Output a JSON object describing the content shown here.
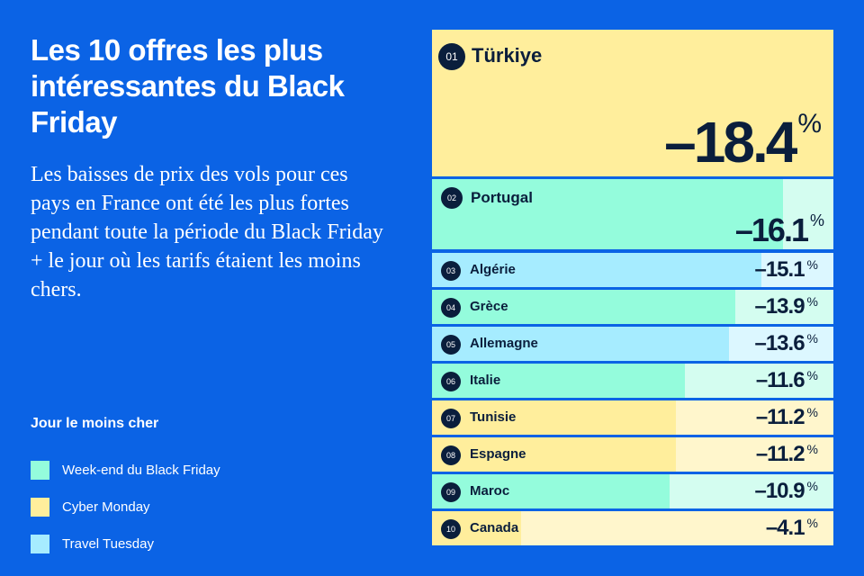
{
  "title": "Les 10 offres les plus intéressantes du Black Friday",
  "subtitle": "Les baisses de prix des vols pour ces pays en France ont été les plus fortes pendant toute la période du Black Friday + le jour où les tarifs étaient les moins chers.",
  "legend": {
    "title": "Jour le moins cher",
    "items": [
      {
        "label": "Week-end du Black Friday",
        "color": "#94fcdc",
        "light": "#d4fdf0"
      },
      {
        "label": "Cyber Monday",
        "color": "#ffee9c",
        "light": "#fff6cc"
      },
      {
        "label": "Travel Tuesday",
        "color": "#a6ecff",
        "light": "#dcf7ff"
      }
    ]
  },
  "chart_data": {
    "type": "bar",
    "orientation": "horizontal",
    "unit": "%",
    "max": 18.4,
    "rows": [
      {
        "rank": "01",
        "country": "Türkiye",
        "value": -18.4,
        "label": "–18.4",
        "category": 1
      },
      {
        "rank": "02",
        "country": "Portugal",
        "value": -16.1,
        "label": "–16.1",
        "category": 0
      },
      {
        "rank": "03",
        "country": "Algérie",
        "value": -15.1,
        "label": "–15.1",
        "category": 2
      },
      {
        "rank": "04",
        "country": "Grèce",
        "value": -13.9,
        "label": "–13.9",
        "category": 0
      },
      {
        "rank": "05",
        "country": "Allemagne",
        "value": -13.6,
        "label": "–13.6",
        "category": 2
      },
      {
        "rank": "06",
        "country": "Italie",
        "value": -11.6,
        "label": "–11.6",
        "category": 0
      },
      {
        "rank": "07",
        "country": "Tunisie",
        "value": -11.2,
        "label": "–11.2",
        "category": 1
      },
      {
        "rank": "08",
        "country": "Espagne",
        "value": -11.2,
        "label": "–11.2",
        "category": 1
      },
      {
        "rank": "09",
        "country": "Maroc",
        "value": -10.9,
        "label": "–10.9",
        "category": 0
      },
      {
        "rank": "10",
        "country": "Canada",
        "value": -4.1,
        "label": "–4.1",
        "category": 1
      }
    ]
  }
}
